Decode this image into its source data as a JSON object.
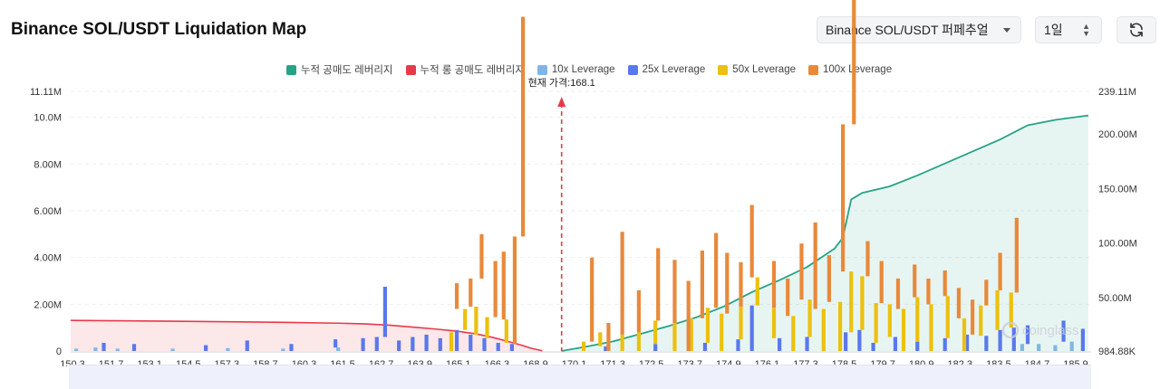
{
  "header": {
    "title": "Binance SOL/USDT Liquidation Map",
    "exchange_select": "Binance SOL/USDT 퍼페추얼",
    "period_select": "1일",
    "refresh_icon": "refresh-icon"
  },
  "legend": [
    {
      "label": "누적 공매도 레버리지",
      "color": "#26a387"
    },
    {
      "label": "누적 롱 공매도 레버리지",
      "color": "#e8394a"
    },
    {
      "label": "10x Leverage",
      "color": "#7fb6e6"
    },
    {
      "label": "25x Leverage",
      "color": "#5a78ec"
    },
    {
      "label": "50x Leverage",
      "color": "#ecc00e"
    },
    {
      "label": "100x Leverage",
      "color": "#e8893a"
    }
  ],
  "watermark": "coinglass",
  "chart_data": {
    "type": "bar",
    "current_price_label": "현재 가격:168.1",
    "current_price": 168.1,
    "x_range": [
      150.3,
      187.3
    ],
    "x_ticks": [
      "150.3",
      "151.7",
      "153.1",
      "154.5",
      "157.3",
      "158.7",
      "160.3",
      "161.5",
      "162.7",
      "163.9",
      "165.1",
      "166.3",
      "168.9",
      "170.1",
      "171.3",
      "172.5",
      "173.7",
      "174.9",
      "176.1",
      "177.3",
      "178.5",
      "179.7",
      "180.9",
      "182.3",
      "183.5",
      "184.7",
      "185.9"
    ],
    "y_left": {
      "ticks": [
        "0",
        "2.00M",
        "4.00M",
        "6.00M",
        "8.00M",
        "10.0M",
        "11.11M"
      ],
      "max": 11110000
    },
    "y_right": {
      "ticks": [
        "984.88K",
        "50.00M",
        "100.00M",
        "150.00M",
        "200.00M",
        "239.11M"
      ],
      "max": 239110000,
      "min": 984880
    },
    "cumulative_long": [
      [
        150.3,
        29
      ],
      [
        152,
        28.7
      ],
      [
        154,
        28.3
      ],
      [
        156,
        27.8
      ],
      [
        158,
        27.3
      ],
      [
        160,
        26.5
      ],
      [
        161,
        25.8
      ],
      [
        161.8,
        24.8
      ],
      [
        162.7,
        22.9
      ],
      [
        163.5,
        21.2
      ],
      [
        164.3,
        19.2
      ],
      [
        165,
        16.7
      ],
      [
        165.6,
        13.5
      ],
      [
        166.1,
        10.1
      ],
      [
        166.6,
        6.7
      ],
      [
        167,
        3.5
      ],
      [
        167.4,
        1.2
      ]
    ],
    "cumulative_short": [
      [
        168.1,
        1
      ],
      [
        169,
        5
      ],
      [
        170,
        10
      ],
      [
        171,
        17
      ],
      [
        172,
        24
      ],
      [
        173,
        32
      ],
      [
        174,
        42
      ],
      [
        175,
        55
      ],
      [
        176,
        66
      ],
      [
        177,
        78
      ],
      [
        178,
        95
      ],
      [
        178.3,
        105
      ],
      [
        178.6,
        140
      ],
      [
        179,
        146
      ],
      [
        180,
        152
      ],
      [
        181,
        162
      ],
      [
        182,
        173
      ],
      [
        183,
        184
      ],
      [
        184,
        195
      ],
      [
        185,
        208
      ],
      [
        186,
        213
      ],
      [
        187.2,
        217
      ]
    ],
    "series": [
      {
        "name": "10x Leverage",
        "values": [
          [
            150.5,
            0.1
          ],
          [
            151.2,
            0.15
          ],
          [
            152.0,
            0.1
          ],
          [
            154.0,
            0.1
          ],
          [
            156.0,
            0.12
          ],
          [
            158.0,
            0.1
          ],
          [
            160.0,
            0.15
          ],
          [
            184.8,
            0.3
          ],
          [
            185.4,
            0.3
          ],
          [
            186.0,
            0.25
          ],
          [
            186.6,
            0.4
          ]
        ]
      },
      {
        "name": "25x Leverage",
        "values": [
          [
            151.5,
            0.35
          ],
          [
            152.6,
            0.3
          ],
          [
            155.2,
            0.25
          ],
          [
            156.7,
            0.45
          ],
          [
            158.3,
            0.3
          ],
          [
            159.9,
            0.35
          ],
          [
            160.9,
            0.55
          ],
          [
            161.4,
            0.6
          ],
          [
            161.7,
            2.15
          ],
          [
            162.2,
            0.45
          ],
          [
            162.7,
            0.6
          ],
          [
            163.2,
            0.7
          ],
          [
            163.7,
            0.55
          ],
          [
            164.3,
            0.9
          ],
          [
            164.8,
            0.7
          ],
          [
            165.3,
            0.55
          ],
          [
            165.8,
            0.35
          ],
          [
            166.3,
            0.3
          ],
          [
            169.7,
            0.2
          ],
          [
            171.5,
            0.3
          ],
          [
            173.3,
            0.35
          ],
          [
            174.5,
            0.5
          ],
          [
            175.0,
            1.95
          ],
          [
            176.0,
            0.55
          ],
          [
            177.0,
            0.6
          ],
          [
            178.4,
            0.8
          ],
          [
            178.9,
            0.9
          ],
          [
            179.4,
            0.35
          ],
          [
            180.2,
            0.6
          ],
          [
            181.0,
            0.4
          ],
          [
            182.0,
            0.55
          ],
          [
            182.8,
            0.7
          ],
          [
            183.5,
            0.65
          ],
          [
            184.0,
            0.9
          ],
          [
            184.5,
            1.0
          ],
          [
            185.0,
            0.8
          ],
          [
            186.3,
            0.9
          ],
          [
            187.0,
            0.95
          ]
        ]
      },
      {
        "name": "50x Leverage",
        "values": [
          [
            164.1,
            0.8
          ],
          [
            164.6,
            0.9
          ],
          [
            165.0,
            1.2
          ],
          [
            165.4,
            0.9
          ],
          [
            166.1,
            1.0
          ],
          [
            168.9,
            0.4
          ],
          [
            169.5,
            0.6
          ],
          [
            170.3,
            0.7
          ],
          [
            170.9,
            0.8
          ],
          [
            171.5,
            1.0
          ],
          [
            172.2,
            1.2
          ],
          [
            172.8,
            1.4
          ],
          [
            173.4,
            1.5
          ],
          [
            173.9,
            1.6
          ],
          [
            174.6,
            1.4
          ],
          [
            175.2,
            1.2
          ],
          [
            175.8,
            1.3
          ],
          [
            176.5,
            1.5
          ],
          [
            177.1,
            1.6
          ],
          [
            177.6,
            1.8
          ],
          [
            178.2,
            2.1
          ],
          [
            178.6,
            2.6
          ],
          [
            179.0,
            2.3
          ],
          [
            179.5,
            1.7
          ],
          [
            180.0,
            1.4
          ],
          [
            180.5,
            1.8
          ],
          [
            181.0,
            1.9
          ],
          [
            181.5,
            2.0
          ],
          [
            182.1,
            1.8
          ],
          [
            182.7,
            1.4
          ],
          [
            183.3,
            1.3
          ],
          [
            183.9,
            1.7
          ],
          [
            184.4,
            1.5
          ]
        ]
      },
      {
        "name": "100x Leverage",
        "values": [
          [
            164.3,
            1.1
          ],
          [
            164.8,
            1.2
          ],
          [
            165.2,
            1.9
          ],
          [
            165.7,
            2.4
          ],
          [
            166.0,
            2.9
          ],
          [
            166.4,
            4.6
          ],
          [
            166.7,
            9.4
          ],
          [
            169.2,
            3.6
          ],
          [
            169.8,
            1.2
          ],
          [
            170.3,
            4.4
          ],
          [
            170.9,
            1.8
          ],
          [
            171.6,
            3.1
          ],
          [
            172.2,
            2.7
          ],
          [
            172.7,
            3.0
          ],
          [
            173.2,
            2.9
          ],
          [
            173.7,
            3.2
          ],
          [
            174.1,
            2.6
          ],
          [
            174.6,
            1.9
          ],
          [
            175.0,
            3.1
          ],
          [
            175.8,
            2.0
          ],
          [
            176.3,
            1.6
          ],
          [
            176.8,
            2.4
          ],
          [
            177.3,
            3.7
          ],
          [
            177.8,
            2.0
          ],
          [
            178.3,
            6.3
          ],
          [
            178.7,
            6.8
          ],
          [
            179.2,
            1.5
          ],
          [
            179.7,
            1.8
          ],
          [
            180.3,
            1.3
          ],
          [
            180.9,
            1.4
          ],
          [
            181.4,
            1.1
          ],
          [
            182.0,
            1.1
          ],
          [
            182.5,
            1.3
          ],
          [
            183.0,
            1.5
          ],
          [
            183.5,
            1.1
          ],
          [
            184.0,
            1.6
          ],
          [
            184.6,
            3.2
          ]
        ]
      }
    ]
  }
}
